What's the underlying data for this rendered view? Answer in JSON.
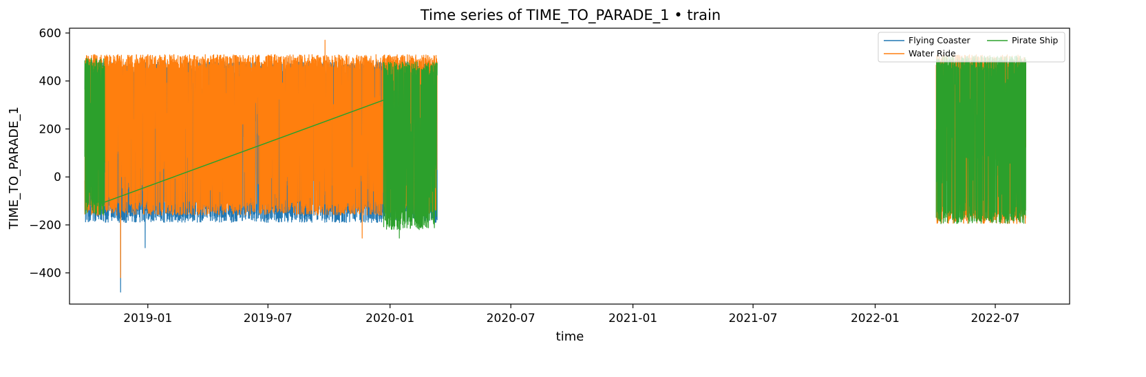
{
  "chart_data": {
    "type": "line",
    "title": "Time series of TIME_TO_PARADE_1 • train",
    "xlabel": "time",
    "ylabel": "TIME_TO_PARADE_1",
    "xlim": [
      "2018-09-05",
      "2022-10-21"
    ],
    "ylim": [
      -530,
      620
    ],
    "x_ticks": [
      {
        "date": "2019-01-01",
        "label": "2019-01"
      },
      {
        "date": "2019-07-01",
        "label": "2019-07"
      },
      {
        "date": "2020-01-01",
        "label": "2020-01"
      },
      {
        "date": "2020-07-01",
        "label": "2020-07"
      },
      {
        "date": "2021-01-01",
        "label": "2021-01"
      },
      {
        "date": "2021-07-01",
        "label": "2021-07"
      },
      {
        "date": "2022-01-01",
        "label": "2022-01"
      },
      {
        "date": "2022-07-01",
        "label": "2022-07"
      }
    ],
    "y_ticks": [
      {
        "value": -400,
        "label": "−400"
      },
      {
        "value": -200,
        "label": "−200"
      },
      {
        "value": 0,
        "label": "0"
      },
      {
        "value": 200,
        "label": "200"
      },
      {
        "value": 400,
        "label": "400"
      },
      {
        "value": 600,
        "label": "600"
      }
    ],
    "grid": false,
    "legend": {
      "placement": "top-right",
      "columns": 2
    },
    "series": [
      {
        "name": "Flying Coaster",
        "color": "#1f77b4",
        "segments": [
          {
            "start": "2018-09-28",
            "end": "2020-03-12",
            "typical_min": -190,
            "typical_max": 480,
            "spikes": [
              {
                "x": "2018-11-21",
                "y": -480
              },
              {
                "x": "2018-12-28",
                "y": -295
              }
            ]
          }
        ]
      },
      {
        "name": "Water Ride",
        "color": "#ff7f0e",
        "segments": [
          {
            "start": "2018-09-28",
            "end": "2020-03-12",
            "typical_min": -160,
            "typical_max": 510,
            "spikes": [
              {
                "x": "2018-11-21",
                "y": -420
              },
              {
                "x": "2019-09-25",
                "y": 570
              },
              {
                "x": "2019-11-20",
                "y": -255
              }
            ]
          },
          {
            "start": "2022-04-03",
            "end": "2022-08-16",
            "typical_min": -195,
            "typical_max": 510,
            "spikes": []
          }
        ]
      },
      {
        "name": "Pirate Ship",
        "color": "#2ca02c",
        "segments": [
          {
            "start": "2018-09-28",
            "end": "2018-10-28",
            "typical_min": -160,
            "typical_max": 495,
            "spikes": []
          },
          {
            "start": "2019-12-22",
            "end": "2020-03-12",
            "typical_min": -220,
            "typical_max": 480,
            "spikes": [
              {
                "x": "2020-01-15",
                "y": -255
              }
            ]
          },
          {
            "start": "2022-04-03",
            "end": "2022-08-16",
            "typical_min": -195,
            "typical_max": 505,
            "spikes": []
          }
        ],
        "connector": [
          {
            "x": "2018-10-28",
            "y": -105
          },
          {
            "x": "2019-12-22",
            "y": 320
          }
        ]
      }
    ]
  }
}
